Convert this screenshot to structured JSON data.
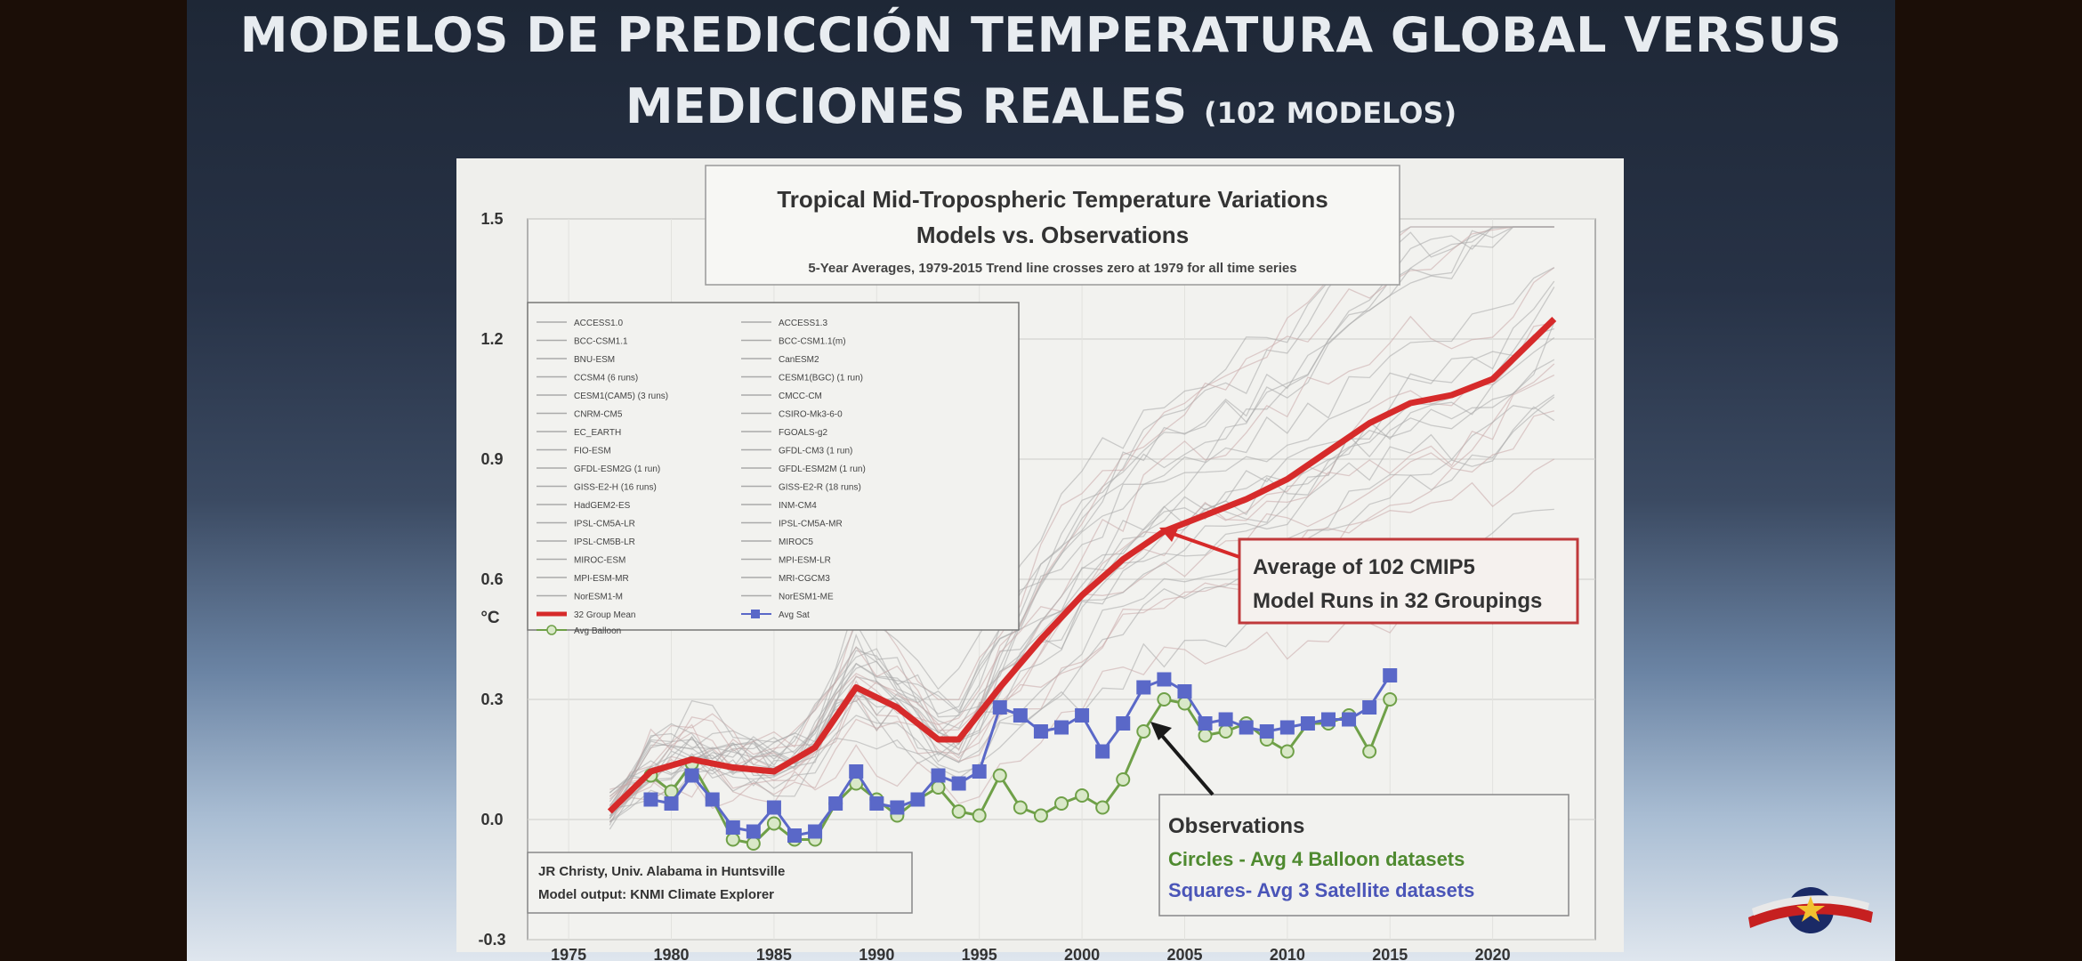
{
  "slide": {
    "title_line1": "MODELOS DE PREDICCIÓN TEMPERATURA GLOBAL VERSUS",
    "title_line2": "MEDICIONES REALES",
    "title_suffix": "(102 MODELOS)"
  },
  "chart_data": {
    "type": "line",
    "title": "Tropical Mid-Tropospheric Temperature Variations",
    "subtitle": "Models vs. Observations",
    "note": "5-Year Averages, 1979-2015 Trend line crosses zero at 1979 for all time series",
    "ylabel": "°C",
    "xlim": [
      1973,
      2025
    ],
    "ylim": [
      -0.3,
      1.5
    ],
    "x_ticks": [
      "1975",
      "1980",
      "1985",
      "1990",
      "1995",
      "2000",
      "2005",
      "2010",
      "2015",
      "2020"
    ],
    "y_ticks": [
      "1.5",
      "1.2",
      "0.9",
      "0.6",
      "0.3",
      "0.0",
      "-0.3"
    ],
    "grid": true,
    "legend_position": "top-left",
    "legend_entries": [
      "ACCESS1.0",
      "ACCESS1.3",
      "BCC-CSM1.1",
      "BCC-CSM1.1(m)",
      "BNU-ESM",
      "CanESM2",
      "CCSM4 (6 runs)",
      "CESM1(BGC) (1 run)",
      "CESM1(CAM5) (3 runs)",
      "CMCC-CM",
      "CNRM-CM5",
      "CSIRO-Mk3-6-0",
      "EC_EARTH",
      "FGOALS-g2",
      "FIO-ESM",
      "GFDL-CM3 (1 run)",
      "GFDL-ESM2G (1 run)",
      "GFDL-ESM2M (1 run)",
      "GISS-E2-H (16 runs)",
      "GISS-E2-R (18 runs)",
      "HadGEM2-ES",
      "INM-CM4",
      "IPSL-CM5A-LR",
      "IPSL-CM5A-MR",
      "IPSL-CM5B-LR",
      "MIROC5",
      "MIROC-ESM",
      "MPI-ESM-LR",
      "MPI-ESM-MR",
      "MRI-CGCM3",
      "NorESM1-M",
      "NorESM1-ME",
      "32 Group Mean",
      "Avg Sat",
      "Avg Balloon"
    ],
    "series": [
      {
        "name": "32 Group Mean",
        "color": "#d62a2a",
        "x": [
          1977,
          1979,
          1981,
          1983,
          1985,
          1987,
          1989,
          1991,
          1993,
          1994,
          1996,
          1998,
          2000,
          2002,
          2004,
          2006,
          2008,
          2010,
          2012,
          2014,
          2016,
          2018,
          2020,
          2023
        ],
        "y": [
          0.02,
          0.12,
          0.15,
          0.13,
          0.12,
          0.18,
          0.33,
          0.28,
          0.2,
          0.2,
          0.33,
          0.45,
          0.56,
          0.65,
          0.72,
          0.76,
          0.8,
          0.85,
          0.92,
          0.99,
          1.04,
          1.06,
          1.1,
          1.25
        ]
      },
      {
        "name": "Avg Sat",
        "color": "#5a68c8",
        "x": [
          1979,
          1980,
          1981,
          1982,
          1983,
          1984,
          1985,
          1986,
          1987,
          1988,
          1989,
          1990,
          1991,
          1992,
          1993,
          1994,
          1995,
          1996,
          1997,
          1998,
          1999,
          2000,
          2001,
          2002,
          2003,
          2004,
          2005,
          2006,
          2007,
          2008,
          2009,
          2010,
          2011,
          2012,
          2013,
          2014,
          2015
        ],
        "y": [
          0.05,
          0.04,
          0.11,
          0.05,
          -0.02,
          -0.03,
          0.03,
          -0.04,
          -0.03,
          0.04,
          0.12,
          0.04,
          0.03,
          0.05,
          0.11,
          0.09,
          0.12,
          0.28,
          0.26,
          0.22,
          0.23,
          0.26,
          0.17,
          0.24,
          0.33,
          0.35,
          0.32,
          0.24,
          0.25,
          0.23,
          0.22,
          0.23,
          0.24,
          0.25,
          0.25,
          0.28,
          0.36
        ]
      },
      {
        "name": "Avg Balloon",
        "color": "#6fa048",
        "x": [
          1979,
          1980,
          1981,
          1982,
          1983,
          1984,
          1985,
          1986,
          1987,
          1988,
          1989,
          1990,
          1991,
          1992,
          1993,
          1994,
          1995,
          1996,
          1997,
          1998,
          1999,
          2000,
          2001,
          2002,
          2003,
          2004,
          2005,
          2006,
          2007,
          2008,
          2009,
          2010,
          2011,
          2012,
          2013,
          2014,
          2015
        ],
        "y": [
          0.11,
          0.07,
          0.14,
          0.05,
          -0.05,
          -0.06,
          -0.01,
          -0.05,
          -0.05,
          0.04,
          0.09,
          0.05,
          0.01,
          0.05,
          0.08,
          0.02,
          0.01,
          0.11,
          0.03,
          0.01,
          0.04,
          0.06,
          0.03,
          0.1,
          0.22,
          0.3,
          0.29,
          0.21,
          0.22,
          0.24,
          0.2,
          0.17,
          0.24,
          0.24,
          0.26,
          0.17,
          0.3
        ]
      }
    ],
    "annotations": {
      "mean_box": [
        "Average of 102 CMIP5",
        "Model Runs in 32 Groupings"
      ],
      "obs_title": "Observations",
      "obs_circles": "Circles - Avg 4 Balloon datasets",
      "obs_squares": "Squares- Avg 3 Satellite datasets",
      "credit_line1": "JR Christy, Univ. Alabama in Huntsville",
      "credit_line2": "Model output: KNMI Climate Explorer"
    }
  }
}
